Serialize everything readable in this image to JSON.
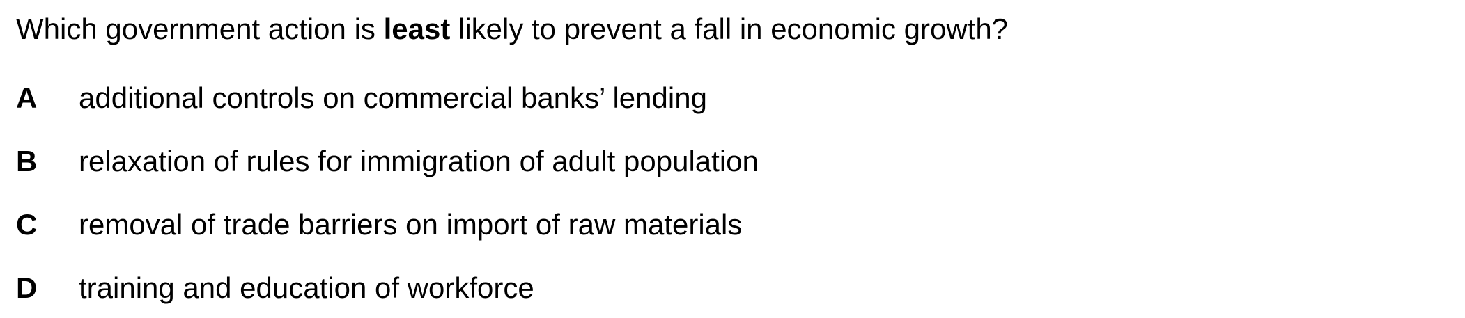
{
  "question": {
    "prefix": "Which government action is ",
    "emphasis": "least",
    "suffix": " likely to prevent a fall in economic growth?"
  },
  "options": [
    {
      "letter": "A",
      "text": "additional controls on commercial banks’ lending"
    },
    {
      "letter": "B",
      "text": "relaxation of rules for immigration of adult population"
    },
    {
      "letter": "C",
      "text": "removal of trade barriers on import of raw materials"
    },
    {
      "letter": "D",
      "text": "training and education of workforce"
    }
  ]
}
